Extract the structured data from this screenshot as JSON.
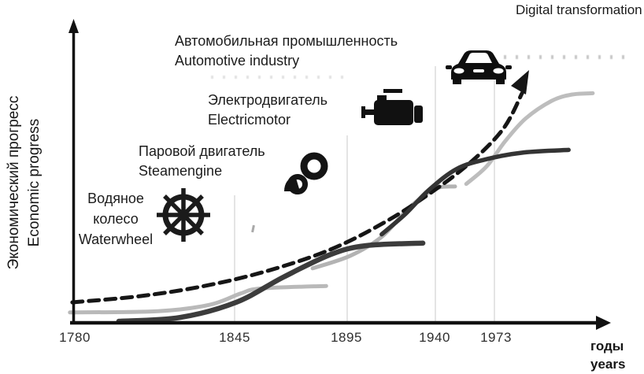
{
  "y_axis": {
    "label_ru": "Экономический прогресс",
    "label_en": "Economic progress"
  },
  "x_axis": {
    "ticks": [
      "1780",
      "1845",
      "1895",
      "1940",
      "1973"
    ],
    "label_ru": "годы",
    "label_en": "years"
  },
  "stages": [
    {
      "name": "waterwheel",
      "label_ru": "Водяное колесо",
      "label_en": "Waterwheel",
      "icon": "ship-helm-icon"
    },
    {
      "name": "steam-engine",
      "label_ru": "Паровой двигатель",
      "label_en": "Steamengine",
      "icon": "piston-icon"
    },
    {
      "name": "electric-motor",
      "label_ru": "Электродвигатель",
      "label_en": "Electricmotor",
      "icon": "engine-icon"
    },
    {
      "name": "automotive",
      "label_ru": "Автомобильная промышленность",
      "label_en": "Automotive industry",
      "icon": "car-icon"
    },
    {
      "name": "digital-transformation",
      "label_en": "Digital transformation"
    }
  ],
  "colors": {
    "axis": "#111111",
    "envelope": "#161616",
    "dark_curve": "#3c3c3c",
    "light_curve": "#b9b9b9",
    "gridline": "#e4e4e4"
  },
  "chart_data": {
    "type": "line",
    "title": "",
    "xlabel": "годы / years",
    "ylabel": "Экономический прогресс / Economic progress",
    "x_ticks": [
      1780,
      1845,
      1895,
      1940,
      1973
    ],
    "ylim_note": "no numeric y scale shown; values are relative progress 0-100",
    "legend": "none (labels + icons annotate each S-curve)",
    "grid": "faint vertical lines at tick years",
    "series": [
      {
        "name": "waterwheel",
        "label": "Водяное колесо / Waterwheel",
        "style": "solid",
        "color": "#b9b9b9",
        "stroke_width": 5,
        "points": [
          [
            1778,
            3.5
          ],
          [
            1814,
            4
          ],
          [
            1835,
            6.5
          ],
          [
            1848,
            11
          ],
          [
            1857,
            13
          ],
          [
            1886,
            14
          ]
        ]
      },
      {
        "name": "steam-engine",
        "label": "Паровой двигатель / Steamengine",
        "style": "solid",
        "color": "#3c3c3c",
        "stroke_width": 6.5,
        "points": [
          [
            1798,
            0
          ],
          [
            1823,
            1.5
          ],
          [
            1846,
            7.5
          ],
          [
            1867,
            17.5
          ],
          [
            1888,
            26.5
          ],
          [
            1905,
            30
          ],
          [
            1934,
            31
          ]
        ]
      },
      {
        "name": "electric-motor",
        "label": "Электродвигатель / Electricmotor",
        "style": "solid",
        "color": "#b3b3b3",
        "stroke_width": 5,
        "points": [
          [
            1880,
            21
          ],
          [
            1897,
            26
          ],
          [
            1913,
            33.5
          ],
          [
            1927,
            45
          ],
          [
            1940,
            52.5
          ],
          [
            1951,
            53.5
          ]
        ]
      },
      {
        "name": "automotive",
        "label": "Автомобильная промышленность / Automotive industry",
        "style": "solid",
        "color": "#343434",
        "stroke_width": 5.5,
        "points": [
          [
            1913,
            34.5
          ],
          [
            1925,
            42.5
          ],
          [
            1937,
            52
          ],
          [
            1952,
            60.5
          ],
          [
            1969,
            64.5
          ],
          [
            1988,
            67
          ],
          [
            2012,
            68
          ]
        ]
      },
      {
        "name": "digital-transformation",
        "label": "Digital transformation",
        "style": "solid",
        "color": "#bdbdbd",
        "stroke_width": 5,
        "points": [
          [
            1957,
            54.5
          ],
          [
            1968,
            61.5
          ],
          [
            1978,
            71.5
          ],
          [
            1989,
            80.5
          ],
          [
            2003,
            87.5
          ],
          [
            2014,
            90
          ],
          [
            2025,
            90.5
          ]
        ]
      },
      {
        "name": "progress-envelope",
        "label": "Economic progress envelope (dashed arrow)",
        "style": "dashed-arrow",
        "color": "#161616",
        "stroke_width": 5,
        "dash": "13 8",
        "points": [
          [
            1779,
            7.5
          ],
          [
            1807,
            10
          ],
          [
            1833,
            14
          ],
          [
            1860,
            20
          ],
          [
            1888,
            28.5
          ],
          [
            1915,
            39.5
          ],
          [
            1939,
            51.5
          ],
          [
            1960,
            63.5
          ],
          [
            1977,
            76.5
          ],
          [
            1987,
            90.5
          ]
        ]
      }
    ]
  }
}
